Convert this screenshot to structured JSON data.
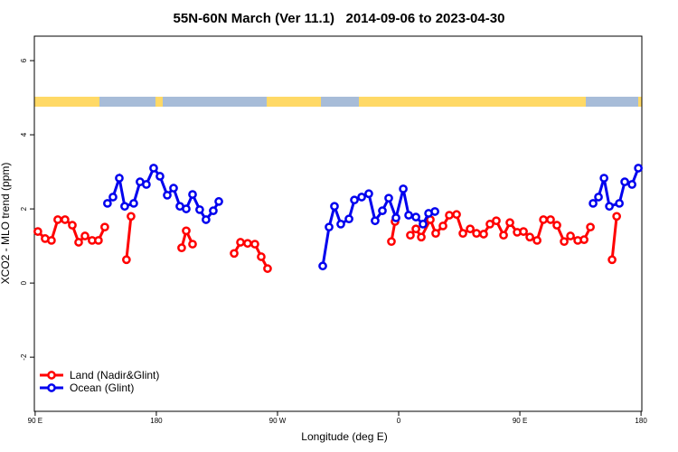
{
  "chart_data": {
    "type": "line",
    "title": "55N-60N March (Ver 11.1)   2014-09-06 to 2023-04-30",
    "x_label": "Longitude (deg E)",
    "y_label": "XCO2 - MLO trend (ppm)",
    "xlim": [
      -270.6,
      180.6
    ],
    "ylim": [
      -3.46,
      6.66
    ],
    "xticks": [
      {
        "value": -270,
        "label": "90 E"
      },
      {
        "value": -180,
        "label": "180"
      },
      {
        "value": -90,
        "label": "90 W"
      },
      0,
      {
        "value": 90,
        "label": "90 E"
      },
      180
    ],
    "yticks": [
      -2,
      0,
      2,
      4,
      6
    ],
    "legend": "bottom-left",
    "series": [
      {
        "name": "Land (Nadir&Glint)",
        "color": "#ff0000",
        "x": [
          -268.0,
          -262.6,
          -257.9,
          -253.2,
          -247.8,
          -242.4,
          -237.7,
          -233.0,
          -227.7,
          -223.0,
          -218.3,
          null,
          -202.2,
          -198.8,
          null,
          -161.2,
          -157.8,
          -153.1,
          null,
          -122.2,
          -117.5,
          -112.2,
          -106.8,
          -102.1,
          -97.4,
          null,
          -5.4,
          -2.7,
          null,
          8.7,
          12.8,
          16.8,
          23.5,
          27.5,
          32.9,
          37.6,
          43.0,
          47.7,
          53.1,
          57.8,
          63.1,
          67.8,
          72.5,
          77.9,
          82.6,
          88.0,
          92.7,
          97.4,
          102.8,
          107.5,
          112.8,
          117.5,
          122.9,
          127.6,
          133.0,
          137.7,
          142.4,
          null,
          158.5,
          161.9
        ],
        "values": [
          1.39,
          1.2,
          1.15,
          1.71,
          1.71,
          1.56,
          1.1,
          1.27,
          1.15,
          1.15,
          1.51,
          null,
          0.63,
          1.8,
          null,
          0.95,
          1.41,
          1.05,
          null,
          0.8,
          1.1,
          1.07,
          1.05,
          0.71,
          0.39,
          null,
          1.12,
          1.66,
          null,
          1.29,
          1.46,
          1.24,
          1.71,
          1.34,
          1.54,
          1.83,
          1.85,
          1.34,
          1.46,
          1.34,
          1.32,
          1.59,
          1.68,
          1.29,
          1.63,
          1.37,
          1.39,
          1.24,
          1.15,
          1.71,
          1.71,
          1.56,
          1.12,
          1.27,
          1.15,
          1.17,
          1.51,
          null,
          0.63,
          1.8
        ]
      },
      {
        "name": "Ocean (Glint)",
        "color": "#0000ee",
        "x": [
          -216.3,
          -212.2,
          -207.5,
          -203.5,
          -196.8,
          -192.1,
          -187.4,
          -182.0,
          -177.3,
          -171.9,
          -167.2,
          -162.5,
          -157.8,
          -153.1,
          -147.8,
          -143.1,
          -137.7,
          -133.6,
          null,
          -56.4,
          -51.7,
          -47.7,
          -43.0,
          -36.9,
          -32.9,
          -27.5,
          -22.2,
          -17.5,
          -12.1,
          -7.4,
          -2.0,
          3.4,
          7.4,
          12.8,
          18.1,
          22.2,
          26.9,
          null,
          144.4,
          148.4,
          152.5,
          156.5,
          163.9,
          167.9,
          173.3,
          178.0
        ],
        "values": [
          2.15,
          2.32,
          2.83,
          2.07,
          2.15,
          2.73,
          2.66,
          3.1,
          2.88,
          2.37,
          2.56,
          2.07,
          2.0,
          2.39,
          1.98,
          1.71,
          1.95,
          2.2,
          null,
          0.46,
          1.51,
          2.07,
          1.59,
          1.73,
          2.24,
          2.32,
          2.41,
          1.68,
          1.95,
          2.29,
          1.76,
          2.54,
          1.83,
          1.78,
          1.59,
          1.88,
          1.93,
          null,
          2.15,
          2.32,
          2.83,
          2.07,
          2.15,
          2.73,
          2.66,
          3.1
        ]
      }
    ]
  }
}
